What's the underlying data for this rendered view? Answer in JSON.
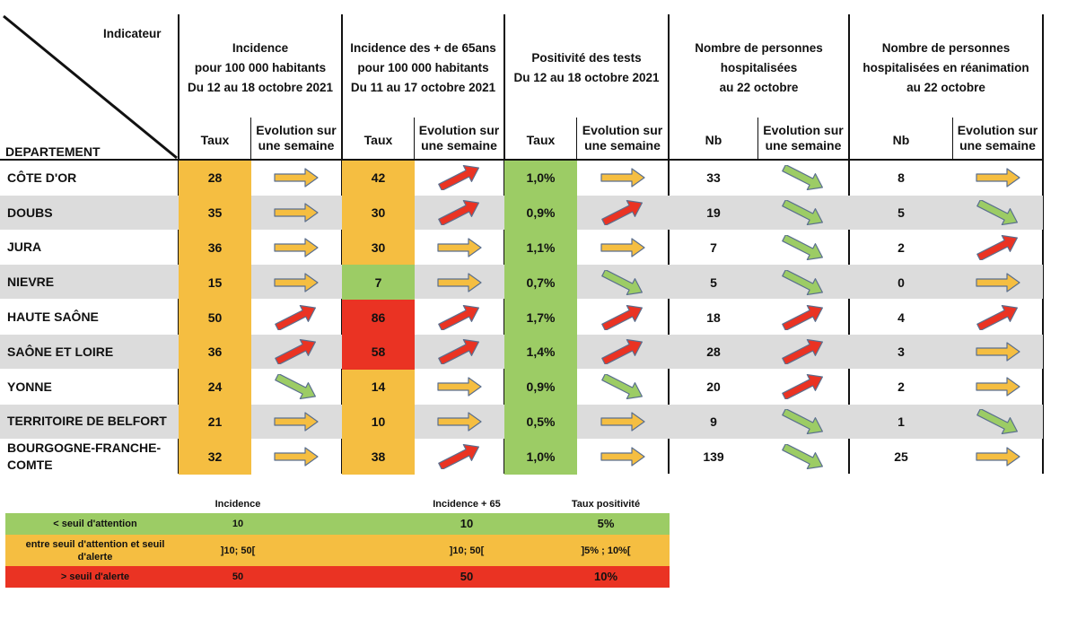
{
  "header": {
    "indicateur": "Indicateur",
    "departement": "DEPARTEMENT",
    "groups": [
      {
        "lines": [
          "Incidence",
          "pour 100 000 habitants",
          "Du 12 au 18 octobre 2021"
        ],
        "sub_value": "Taux",
        "sub_evol": "Evolution sur une semaine"
      },
      {
        "lines": [
          "Incidence des + de 65ans",
          "pour 100 000 habitants",
          "Du 11 au 17 octobre 2021"
        ],
        "sub_value": "Taux",
        "sub_evol": "Evolution sur une semaine"
      },
      {
        "lines": [
          "Positivité des tests",
          "Du 12 au 18 octobre 2021"
        ],
        "sub_value": "Taux",
        "sub_evol": "Evolution sur une semaine"
      },
      {
        "lines": [
          "Nombre de personnes",
          "hospitalisées",
          "au 22 octobre"
        ],
        "sub_value": "Nb",
        "sub_evol": "Evolution sur une semaine"
      },
      {
        "lines": [
          "Nombre de personnes",
          "hospitalisées en réanimation",
          "au 22 octobre"
        ],
        "sub_value": "Nb",
        "sub_evol": "Evolution sur une semaine"
      }
    ]
  },
  "colors": {
    "yellow": "#f5be41",
    "green": "#9ccc65",
    "red": "#ea3323",
    "stripe": "#dcdcdc"
  },
  "rows": [
    {
      "name": "CÔTE D'OR",
      "values": [
        "28",
        "42",
        "1,0%",
        "33",
        "8"
      ],
      "levels": [
        "yellow",
        "yellow",
        "green",
        "",
        ""
      ],
      "trends": [
        "flat",
        "up",
        "flat",
        "down",
        "flat"
      ]
    },
    {
      "name": "DOUBS",
      "values": [
        "35",
        "30",
        "0,9%",
        "19",
        "5"
      ],
      "levels": [
        "yellow",
        "yellow",
        "green",
        "",
        ""
      ],
      "trends": [
        "flat",
        "up",
        "up",
        "down",
        "down"
      ]
    },
    {
      "name": "JURA",
      "values": [
        "36",
        "30",
        "1,1%",
        "7",
        "2"
      ],
      "levels": [
        "yellow",
        "yellow",
        "green",
        "",
        ""
      ],
      "trends": [
        "flat",
        "flat",
        "flat",
        "down",
        "up"
      ]
    },
    {
      "name": "NIEVRE",
      "values": [
        "15",
        "7",
        "0,7%",
        "5",
        "0"
      ],
      "levels": [
        "yellow",
        "green",
        "green",
        "",
        ""
      ],
      "trends": [
        "flat",
        "flat",
        "down",
        "down",
        "flat"
      ]
    },
    {
      "name": "HAUTE SAÔNE",
      "values": [
        "50",
        "86",
        "1,7%",
        "18",
        "4"
      ],
      "levels": [
        "yellow",
        "red",
        "green",
        "",
        ""
      ],
      "trends": [
        "up",
        "up",
        "up",
        "up",
        "up"
      ]
    },
    {
      "name": "SAÔNE ET LOIRE",
      "values": [
        "36",
        "58",
        "1,4%",
        "28",
        "3"
      ],
      "levels": [
        "yellow",
        "red",
        "green",
        "",
        ""
      ],
      "trends": [
        "up",
        "up",
        "up",
        "up",
        "flat"
      ]
    },
    {
      "name": "YONNE",
      "values": [
        "24",
        "14",
        "0,9%",
        "20",
        "2"
      ],
      "levels": [
        "yellow",
        "yellow",
        "green",
        "",
        ""
      ],
      "trends": [
        "down",
        "flat",
        "down",
        "up",
        "flat"
      ]
    },
    {
      "name": "TERRITOIRE DE BELFORT",
      "values": [
        "21",
        "10",
        "0,5%",
        "9",
        "1"
      ],
      "levels": [
        "yellow",
        "yellow",
        "green",
        "",
        ""
      ],
      "trends": [
        "flat",
        "flat",
        "flat",
        "down",
        "down"
      ]
    },
    {
      "name": "BOURGOGNE-FRANCHE-COMTE",
      "values": [
        "32",
        "38",
        "1,0%",
        "139",
        "25"
      ],
      "levels": [
        "yellow",
        "yellow",
        "green",
        "",
        ""
      ],
      "trends": [
        "flat",
        "up",
        "flat",
        "down",
        "flat"
      ]
    }
  ],
  "legend": {
    "columns": [
      "Incidence",
      "Incidence + 65",
      "Taux positivité"
    ],
    "rows": [
      {
        "label": "< seuil d'attention",
        "color": "green",
        "values": [
          "10",
          "10",
          "5%"
        ]
      },
      {
        "label": "entre seuil d'attention et seuil d'alerte",
        "color": "yellow",
        "values": [
          "]10; 50[",
          "]10; 50[",
          "]5% ; 10%["
        ]
      },
      {
        "label": "> seuil d'alerte",
        "color": "red",
        "values": [
          "50",
          "50",
          "10%"
        ]
      }
    ]
  }
}
